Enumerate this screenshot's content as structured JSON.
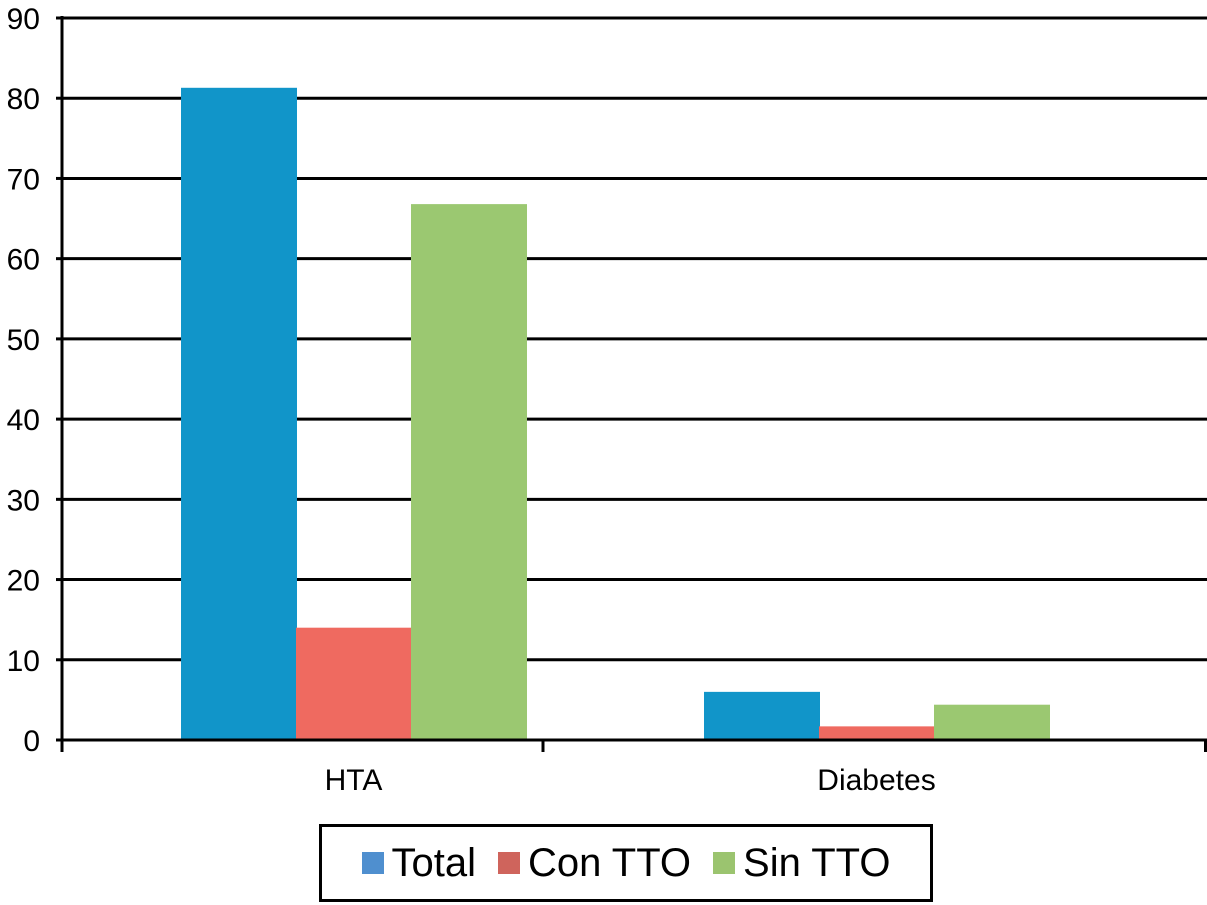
{
  "chart_data": {
    "type": "bar",
    "title": "",
    "xlabel": "",
    "ylabel": "",
    "categories": [
      "HTA",
      "Diabetes"
    ],
    "series": [
      {
        "name": "Total",
        "values": [
          81.3,
          6
        ],
        "color": "#1195c9",
        "legend_color": "#4f8fcf"
      },
      {
        "name": "Con TTO",
        "values": [
          14,
          1.7
        ],
        "color": "#ef6a60",
        "legend_color": "#cf645c"
      },
      {
        "name": "Sin TTO",
        "values": [
          66.8,
          4.4
        ],
        "color": "#9bc871",
        "legend_color": "#9bc46f"
      }
    ],
    "ylim": [
      0,
      90
    ],
    "yticks": [
      0,
      10,
      20,
      30,
      40,
      50,
      60,
      70,
      80,
      90
    ],
    "grid": true,
    "legend_position": "bottom"
  }
}
